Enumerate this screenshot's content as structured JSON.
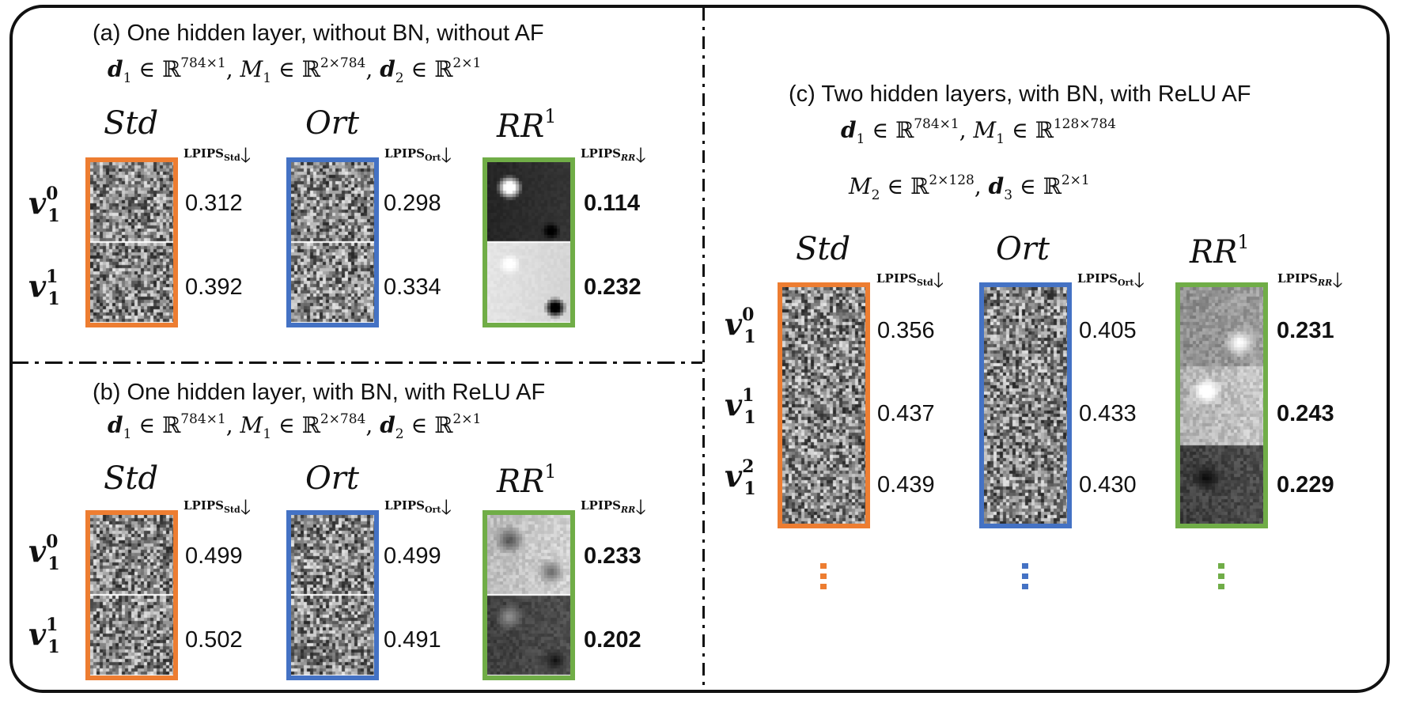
{
  "colors": {
    "std": "#ED7D31",
    "ort": "#4472C4",
    "rr": "#70AD47"
  },
  "common": {
    "col_std": "Std",
    "col_ort": "Ort",
    "col_rr": "RR",
    "col_rr_sup": "1",
    "lpips": "LPIPS",
    "lpips_std_sub": "Std",
    "lpips_ort_sub": "Ort",
    "lpips_rr_sub": "RR",
    "arrow": "🡓",
    "row_v": "v",
    "row_sub": "1",
    "row_sup0": "0",
    "row_sup1": "1",
    "row_sup2": "2"
  },
  "panel_a": {
    "title": "(a) One hidden layer, without BN, without AF",
    "eq_d1": "d",
    "eq_d1_sub": "1",
    "eq_d1_dim": "784×1",
    "eq_M1": "M",
    "eq_M1_sub": "1",
    "eq_M1_dim": "2×784",
    "eq_d2": "d",
    "eq_d2_sub": "2",
    "eq_d2_dim": "2×1",
    "in": "∈ ℝ",
    "std_values": [
      "0.312",
      "0.392"
    ],
    "ort_values": [
      "0.298",
      "0.334"
    ],
    "rr_values": [
      "0.114",
      "0.232"
    ]
  },
  "panel_b": {
    "title": "(b) One hidden  layer, with BN, with ReLU AF",
    "eq_d1": "d",
    "eq_d1_sub": "1",
    "eq_d1_dim": "784×1",
    "eq_M1": "M",
    "eq_M1_sub": "1",
    "eq_M1_dim": "2×784",
    "eq_d2": "d",
    "eq_d2_sub": "2",
    "eq_d2_dim": "2×1",
    "in": "∈ ℝ",
    "std_values": [
      "0.499",
      "0.502"
    ],
    "ort_values": [
      "0.499",
      "0.491"
    ],
    "rr_values": [
      "0.233",
      "0.202"
    ]
  },
  "panel_c": {
    "title": "(c) Two hidden  layers, with BN, with ReLU AF",
    "eq_d1": "d",
    "eq_d1_sub": "1",
    "eq_d1_dim": "784×1",
    "eq_M1": "M",
    "eq_M1_sub": "1",
    "eq_M1_dim": "128×784",
    "eq_M2": "M",
    "eq_M2_sub": "2",
    "eq_M2_dim": "2×128",
    "eq_d3": "d",
    "eq_d3_sub": "3",
    "eq_d3_dim": "2×1",
    "in": "∈ ℝ",
    "std_values": [
      "0.356",
      "0.437",
      "0.439"
    ],
    "ort_values": [
      "0.405",
      "0.433",
      "0.430"
    ],
    "rr_values": [
      "0.231",
      "0.243",
      "0.229"
    ]
  }
}
